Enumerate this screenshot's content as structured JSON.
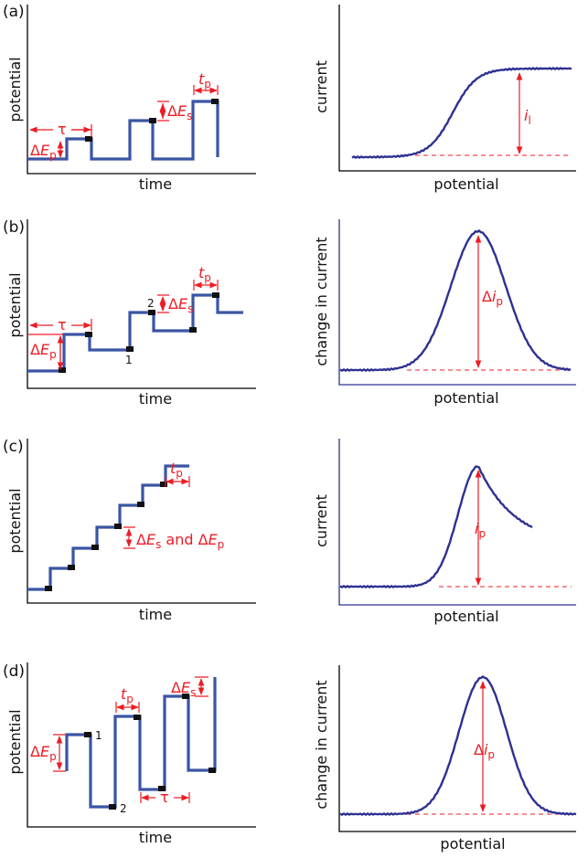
{
  "colors": {
    "waveform": "#3a55a4",
    "response": "#2e3192",
    "annotation": "#ed1c24",
    "sample_marker": "#111111"
  },
  "panels": [
    {
      "id": "a",
      "label": "(a)",
      "left": {
        "xlabel": "time",
        "ylabel": "potential",
        "tau": "τ",
        "dEp": {
          "d": "Δ",
          "v": "E",
          "s": "p"
        },
        "dEs": {
          "d": "Δ",
          "v": "E",
          "s": "s"
        },
        "tp": {
          "v": "t",
          "s": "p"
        }
      },
      "right": {
        "xlabel": "potential",
        "ylabel": "current",
        "signal": {
          "d": "",
          "v": "i",
          "s": "l"
        }
      }
    },
    {
      "id": "b",
      "label": "(b)",
      "left": {
        "xlabel": "time",
        "ylabel": "potential",
        "tau": "τ",
        "dEp": {
          "d": "Δ",
          "v": "E",
          "s": "p"
        },
        "dEs": {
          "d": "Δ",
          "v": "E",
          "s": "s"
        },
        "tp": {
          "v": "t",
          "s": "p"
        },
        "marks": [
          "1",
          "2"
        ]
      },
      "right": {
        "xlabel": "potential",
        "ylabel": "change in current",
        "signal": {
          "d": "Δ",
          "v": "i",
          "s": "p"
        }
      }
    },
    {
      "id": "c",
      "label": "(c)",
      "left": {
        "xlabel": "time",
        "ylabel": "potential",
        "dE": {
          "d1": "Δ",
          "v1": "E",
          "s1": "s",
          "and": " and ",
          "d2": "Δ",
          "v2": "E",
          "s2": "p"
        },
        "tp": {
          "v": "t",
          "s": "p"
        }
      },
      "right": {
        "xlabel": "potential",
        "ylabel": "current",
        "signal": {
          "d": "",
          "v": "i",
          "s": "p"
        }
      }
    },
    {
      "id": "d",
      "label": "(d)",
      "left": {
        "xlabel": "time",
        "ylabel": "potential",
        "tau": "τ",
        "dEp": {
          "d": "Δ",
          "v": "E",
          "s": "p"
        },
        "dEs": {
          "d": "Δ",
          "v": "E",
          "s": "s"
        },
        "tp": {
          "v": "t",
          "s": "p"
        },
        "marks": [
          "1",
          "2"
        ]
      },
      "right": {
        "xlabel": "potential",
        "ylabel": "change in current",
        "signal": {
          "d": "Δ",
          "v": "i",
          "s": "p"
        }
      }
    }
  ]
}
